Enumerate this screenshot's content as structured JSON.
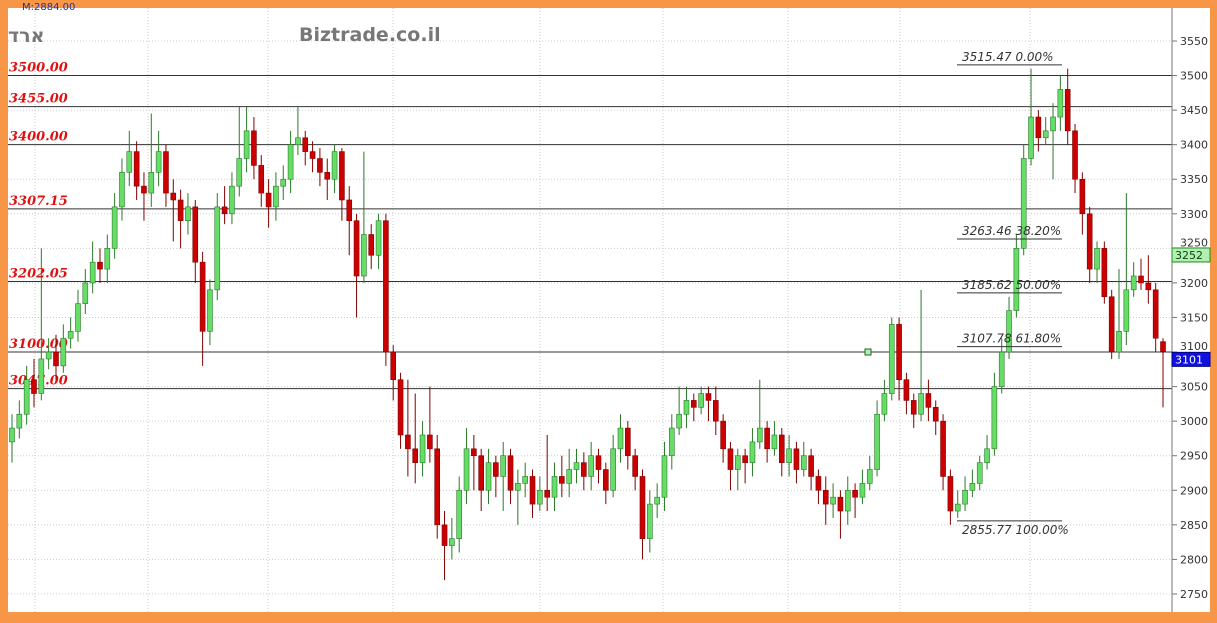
{
  "header": {
    "top_readout": "M:2884.00",
    "symbol": "ארד",
    "watermark": "Biztrade.co.il"
  },
  "chart_data": {
    "type": "candlestick",
    "title": "",
    "yaxis": {
      "position": "right",
      "range": [
        2725,
        3575
      ],
      "ticks": [
        2750,
        2800,
        2850,
        2900,
        2950,
        3000,
        3050,
        3100,
        3150,
        3200,
        3250,
        3300,
        3350,
        3400,
        3450,
        3500,
        3550
      ]
    },
    "grid": true,
    "colors": {
      "up": "#66dd66",
      "up_border": "#2a7a2a",
      "down": "#cc0000",
      "down_border": "#800000",
      "level_label": "#e01010",
      "last_price_bg": "#1010e0",
      "marker_bg": "#b0f0b0"
    },
    "levels": [
      {
        "value": 3500.0,
        "label": "3500.00"
      },
      {
        "value": 3455.0,
        "label": "3455.00"
      },
      {
        "value": 3400.0,
        "label": "3400.00"
      },
      {
        "value": 3307.15,
        "label": "3307.15"
      },
      {
        "value": 3202.05,
        "label": "3202.05"
      },
      {
        "value": 3100.0,
        "label": "3100.00"
      },
      {
        "value": 3047.0,
        "label": "3047.00"
      }
    ],
    "fibonacci": [
      {
        "value": 3515.47,
        "label": "3515.47 0.00%"
      },
      {
        "value": 3263.46,
        "label": "3263.46 38.20%"
      },
      {
        "value": 3185.62,
        "label": "3185.62 50.00%"
      },
      {
        "value": 3107.78,
        "label": "3107.78 61.80%"
      },
      {
        "value": 2855.77,
        "label": "2855.77 100.00%"
      }
    ],
    "price_markers": [
      {
        "value": 3252,
        "label": "3252",
        "style": "green"
      },
      {
        "value": 3101,
        "label": "3101",
        "style": "blue"
      }
    ],
    "candles": [
      [
        2970,
        3010,
        2940,
        2990
      ],
      [
        2990,
        3030,
        2975,
        3010
      ],
      [
        3010,
        3080,
        2995,
        3060
      ],
      [
        3060,
        3090,
        3020,
        3040
      ],
      [
        3040,
        3250,
        3030,
        3090
      ],
      [
        3090,
        3120,
        3075,
        3100
      ],
      [
        3100,
        3125,
        3060,
        3080
      ],
      [
        3080,
        3140,
        3070,
        3120
      ],
      [
        3120,
        3150,
        3105,
        3130
      ],
      [
        3130,
        3190,
        3115,
        3170
      ],
      [
        3170,
        3220,
        3155,
        3200
      ],
      [
        3200,
        3260,
        3185,
        3230
      ],
      [
        3230,
        3250,
        3200,
        3220
      ],
      [
        3220,
        3270,
        3200,
        3250
      ],
      [
        3250,
        3330,
        3235,
        3310
      ],
      [
        3310,
        3380,
        3290,
        3360
      ],
      [
        3360,
        3420,
        3340,
        3390
      ],
      [
        3390,
        3405,
        3320,
        3340
      ],
      [
        3340,
        3360,
        3290,
        3330
      ],
      [
        3330,
        3445,
        3310,
        3360
      ],
      [
        3360,
        3420,
        3340,
        3390
      ],
      [
        3390,
        3400,
        3310,
        3330
      ],
      [
        3330,
        3350,
        3260,
        3320
      ],
      [
        3320,
        3335,
        3250,
        3290
      ],
      [
        3290,
        3330,
        3270,
        3310
      ],
      [
        3310,
        3320,
        3200,
        3230
      ],
      [
        3230,
        3245,
        3080,
        3130
      ],
      [
        3130,
        3205,
        3110,
        3190
      ],
      [
        3190,
        3330,
        3175,
        3310
      ],
      [
        3310,
        3340,
        3285,
        3300
      ],
      [
        3300,
        3360,
        3285,
        3340
      ],
      [
        3340,
        3455,
        3325,
        3380
      ],
      [
        3380,
        3455,
        3360,
        3420
      ],
      [
        3420,
        3440,
        3350,
        3370
      ],
      [
        3370,
        3385,
        3310,
        3330
      ],
      [
        3330,
        3350,
        3280,
        3310
      ],
      [
        3310,
        3360,
        3290,
        3340
      ],
      [
        3340,
        3370,
        3320,
        3350
      ],
      [
        3350,
        3420,
        3330,
        3400
      ],
      [
        3400,
        3455,
        3385,
        3410
      ],
      [
        3410,
        3420,
        3370,
        3390
      ],
      [
        3390,
        3405,
        3360,
        3380
      ],
      [
        3380,
        3395,
        3340,
        3360
      ],
      [
        3360,
        3380,
        3320,
        3350
      ],
      [
        3350,
        3400,
        3330,
        3390
      ],
      [
        3390,
        3395,
        3290,
        3320
      ],
      [
        3320,
        3340,
        3240,
        3290
      ],
      [
        3290,
        3300,
        3150,
        3210
      ],
      [
        3210,
        3390,
        3200,
        3270
      ],
      [
        3270,
        3285,
        3220,
        3240
      ],
      [
        3240,
        3300,
        3220,
        3290
      ],
      [
        3290,
        3300,
        3080,
        3100
      ],
      [
        3100,
        3110,
        3030,
        3060
      ],
      [
        3060,
        3070,
        2960,
        2980
      ],
      [
        2980,
        3060,
        2920,
        2960
      ],
      [
        2960,
        3040,
        2910,
        2940
      ],
      [
        2940,
        3000,
        2920,
        2980
      ],
      [
        2980,
        3050,
        2940,
        2960
      ],
      [
        2960,
        2980,
        2830,
        2850
      ],
      [
        2850,
        2870,
        2770,
        2820
      ],
      [
        2820,
        2860,
        2800,
        2830
      ],
      [
        2830,
        2920,
        2810,
        2900
      ],
      [
        2900,
        2990,
        2880,
        2960
      ],
      [
        2960,
        2980,
        2900,
        2950
      ],
      [
        2950,
        2960,
        2870,
        2900
      ],
      [
        2900,
        2960,
        2880,
        2940
      ],
      [
        2940,
        2950,
        2890,
        2920
      ],
      [
        2920,
        2970,
        2870,
        2950
      ],
      [
        2950,
        2960,
        2880,
        2900
      ],
      [
        2900,
        2930,
        2850,
        2910
      ],
      [
        2910,
        2940,
        2890,
        2920
      ],
      [
        2920,
        2930,
        2860,
        2880
      ],
      [
        2880,
        2920,
        2870,
        2900
      ],
      [
        2900,
        2980,
        2870,
        2890
      ],
      [
        2890,
        2940,
        2870,
        2920
      ],
      [
        2920,
        2950,
        2890,
        2910
      ],
      [
        2910,
        2960,
        2890,
        2930
      ],
      [
        2930,
        2960,
        2910,
        2940
      ],
      [
        2940,
        2955,
        2900,
        2920
      ],
      [
        2920,
        2970,
        2900,
        2950
      ],
      [
        2950,
        2960,
        2910,
        2930
      ],
      [
        2930,
        2940,
        2880,
        2900
      ],
      [
        2900,
        2980,
        2890,
        2960
      ],
      [
        2960,
        3010,
        2940,
        2990
      ],
      [
        2990,
        3000,
        2930,
        2950
      ],
      [
        2950,
        2960,
        2900,
        2920
      ],
      [
        2920,
        2930,
        2800,
        2830
      ],
      [
        2830,
        2900,
        2810,
        2880
      ],
      [
        2880,
        2910,
        2860,
        2890
      ],
      [
        2890,
        2970,
        2870,
        2950
      ],
      [
        2950,
        3010,
        2930,
        2990
      ],
      [
        2990,
        3050,
        2980,
        3010
      ],
      [
        3010,
        3050,
        2990,
        3030
      ],
      [
        3030,
        3040,
        3000,
        3020
      ],
      [
        3020,
        3050,
        3010,
        3040
      ],
      [
        3040,
        3050,
        3000,
        3030
      ],
      [
        3030,
        3050,
        2980,
        3000
      ],
      [
        3000,
        3010,
        2940,
        2960
      ],
      [
        2960,
        2970,
        2900,
        2930
      ],
      [
        2930,
        2960,
        2900,
        2950
      ],
      [
        2950,
        2960,
        2910,
        2940
      ],
      [
        2940,
        2990,
        2920,
        2970
      ],
      [
        2970,
        3060,
        2960,
        2990
      ],
      [
        2990,
        3000,
        2940,
        2960
      ],
      [
        2960,
        3000,
        2950,
        2980
      ],
      [
        2980,
        2990,
        2920,
        2940
      ],
      [
        2940,
        2980,
        2920,
        2960
      ],
      [
        2960,
        2970,
        2910,
        2930
      ],
      [
        2930,
        2970,
        2920,
        2950
      ],
      [
        2950,
        2960,
        2900,
        2920
      ],
      [
        2920,
        2930,
        2880,
        2900
      ],
      [
        2900,
        2920,
        2850,
        2880
      ],
      [
        2880,
        2910,
        2860,
        2890
      ],
      [
        2890,
        2900,
        2830,
        2870
      ],
      [
        2870,
        2920,
        2850,
        2900
      ],
      [
        2900,
        2910,
        2860,
        2890
      ],
      [
        2890,
        2930,
        2880,
        2910
      ],
      [
        2910,
        2950,
        2900,
        2930
      ],
      [
        2930,
        3030,
        2920,
        3010
      ],
      [
        3010,
        3060,
        3000,
        3040
      ],
      [
        3040,
        3150,
        3030,
        3140
      ],
      [
        3140,
        3150,
        3030,
        3060
      ],
      [
        3060,
        3070,
        3010,
        3030
      ],
      [
        3030,
        3040,
        2990,
        3010
      ],
      [
        3010,
        3190,
        3000,
        3040
      ],
      [
        3040,
        3060,
        3000,
        3020
      ],
      [
        3020,
        3030,
        2980,
        3000
      ],
      [
        3000,
        3010,
        2900,
        2920
      ],
      [
        2920,
        2930,
        2850,
        2870
      ],
      [
        2870,
        2900,
        2860,
        2880
      ],
      [
        2880,
        2920,
        2870,
        2900
      ],
      [
        2900,
        2930,
        2890,
        2910
      ],
      [
        2910,
        2950,
        2900,
        2940
      ],
      [
        2940,
        2980,
        2930,
        2960
      ],
      [
        2960,
        3070,
        2950,
        3050
      ],
      [
        3050,
        3120,
        3040,
        3100
      ],
      [
        3100,
        3180,
        3090,
        3160
      ],
      [
        3160,
        3270,
        3150,
        3250
      ],
      [
        3250,
        3400,
        3240,
        3380
      ],
      [
        3380,
        3510,
        3370,
        3440
      ],
      [
        3440,
        3450,
        3390,
        3410
      ],
      [
        3410,
        3440,
        3400,
        3420
      ],
      [
        3420,
        3460,
        3350,
        3440
      ],
      [
        3440,
        3500,
        3420,
        3480
      ],
      [
        3480,
        3510,
        3400,
        3420
      ],
      [
        3420,
        3430,
        3330,
        3350
      ],
      [
        3350,
        3360,
        3270,
        3300
      ],
      [
        3300,
        3310,
        3200,
        3220
      ],
      [
        3220,
        3260,
        3200,
        3250
      ],
      [
        3250,
        3260,
        3170,
        3180
      ],
      [
        3180,
        3190,
        3090,
        3100
      ],
      [
        3100,
        3220,
        3090,
        3130
      ],
      [
        3130,
        3330,
        3110,
        3190
      ],
      [
        3190,
        3230,
        3180,
        3210
      ],
      [
        3210,
        3235,
        3190,
        3200
      ],
      [
        3200,
        3240,
        3170,
        3190
      ],
      [
        3190,
        3200,
        3100,
        3120
      ],
      [
        3115,
        3120,
        3020,
        3101
      ]
    ]
  }
}
